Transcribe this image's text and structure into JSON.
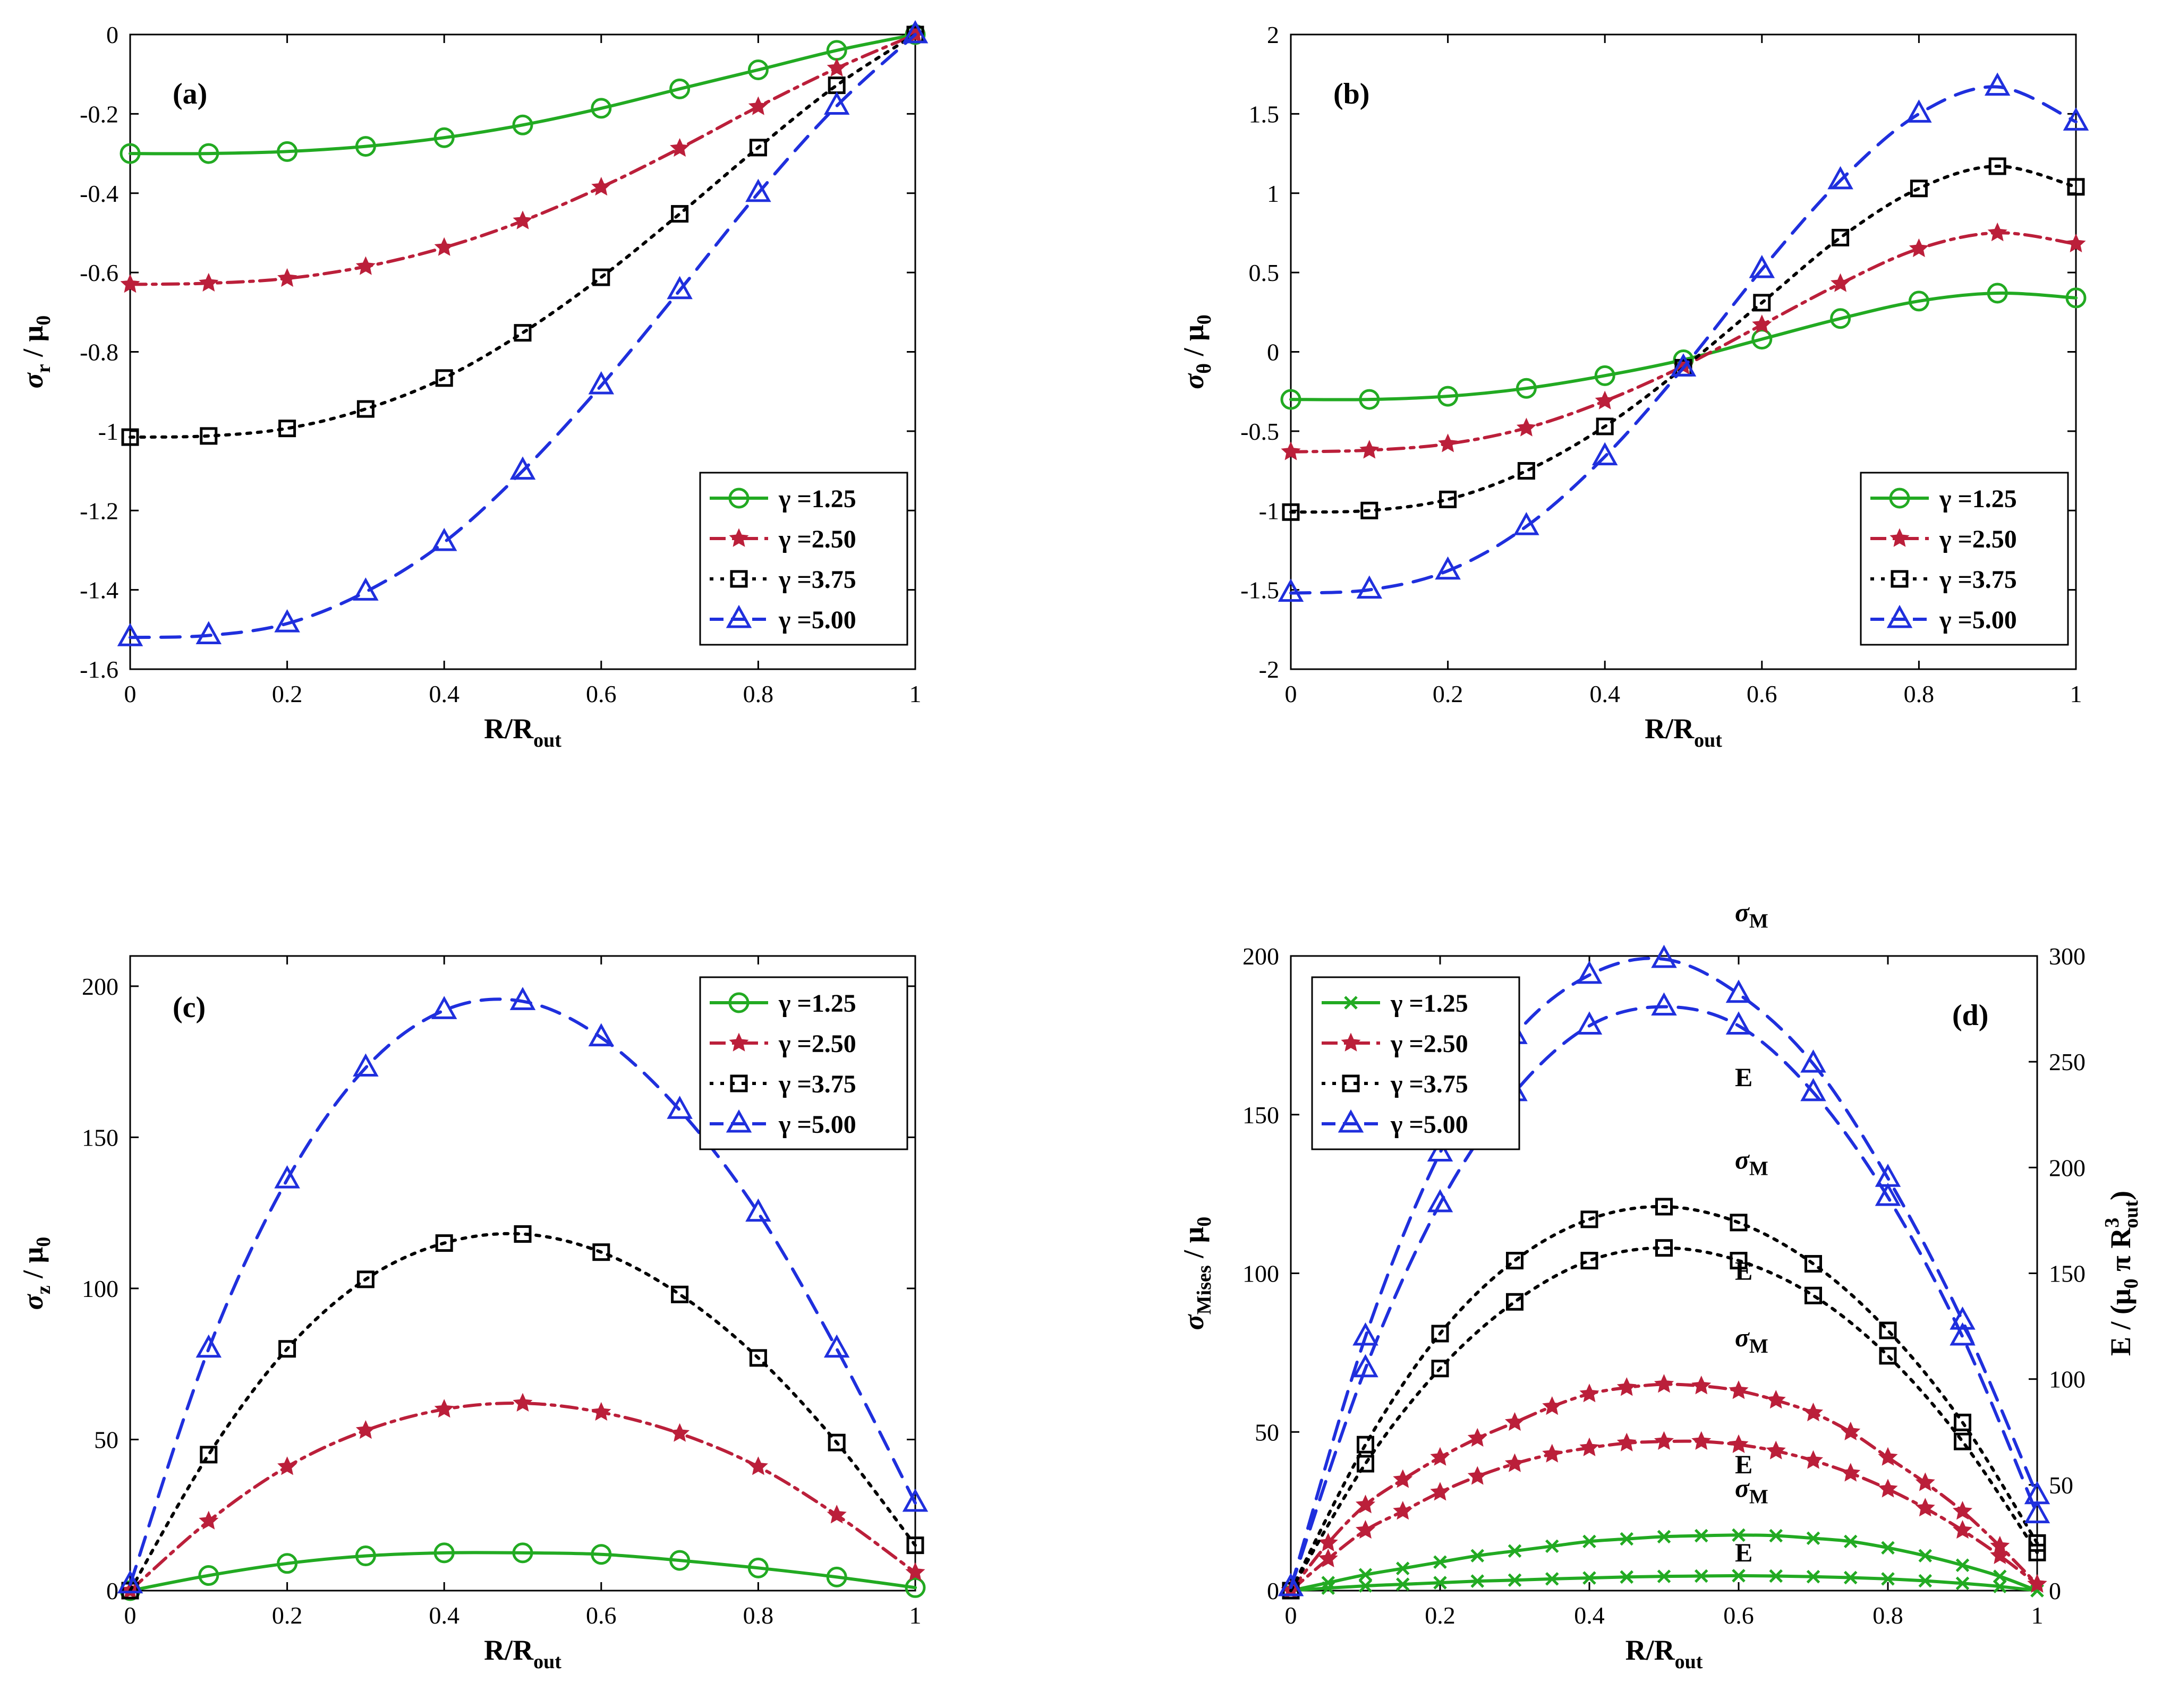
{
  "figure": {
    "panels": [
      {
        "label": "(a)"
      },
      {
        "label": "(b)"
      },
      {
        "label": "(c)"
      },
      {
        "label": "(d)"
      }
    ]
  },
  "chart_data": [
    {
      "type": "line",
      "panel_label": "(a)",
      "xlabel": "R/R",
      "xlabel_sub": "out",
      "ylabel": "σ_r / μ_0",
      "xlim": [
        0,
        1
      ],
      "ylim": [
        -1.6,
        0
      ],
      "xticks": [
        0,
        0.2,
        0.4,
        0.6,
        0.8,
        1
      ],
      "yticks": [
        -1.6,
        -1.4,
        -1.2,
        -1,
        -0.8,
        -0.6,
        -0.4,
        -0.2,
        0
      ],
      "legend_position": "bottom-right",
      "x": [
        0,
        0.1,
        0.2,
        0.3,
        0.4,
        0.5,
        0.6,
        0.7,
        0.8,
        0.9,
        1.0
      ],
      "series": [
        {
          "name": "γ =1.25",
          "color": "#22aa22",
          "dash": "solid",
          "marker": "circle",
          "values": [
            -0.3,
            -0.3,
            -0.295,
            -0.282,
            -0.26,
            -0.228,
            -0.186,
            -0.137,
            -0.089,
            -0.04,
            0
          ]
        },
        {
          "name": "γ =2.50",
          "color": "#bb1f3a",
          "dash": "dashdot",
          "marker": "star",
          "values": [
            -0.63,
            -0.627,
            -0.615,
            -0.585,
            -0.537,
            -0.47,
            -0.385,
            -0.287,
            -0.182,
            -0.085,
            0
          ]
        },
        {
          "name": "γ =3.75",
          "color": "#000000",
          "dash": "dotted",
          "marker": "square",
          "values": [
            -1.015,
            -1.012,
            -0.993,
            -0.944,
            -0.866,
            -0.752,
            -0.612,
            -0.452,
            -0.285,
            -0.128,
            0
          ]
        },
        {
          "name": "γ =5.00",
          "color": "#1f2fdd",
          "dash": "dashed",
          "marker": "triangle",
          "values": [
            -1.52,
            -1.515,
            -1.485,
            -1.405,
            -1.28,
            -1.1,
            -0.885,
            -0.645,
            -0.4,
            -0.18,
            0
          ]
        }
      ]
    },
    {
      "type": "line",
      "panel_label": "(b)",
      "xlabel": "R/R",
      "xlabel_sub": "out",
      "ylabel": "σ_θ / μ_0",
      "xlim": [
        0,
        1
      ],
      "ylim": [
        -2,
        2
      ],
      "xticks": [
        0,
        0.2,
        0.4,
        0.6,
        0.8,
        1
      ],
      "yticks": [
        -2,
        -1.5,
        -1,
        -0.5,
        0,
        0.5,
        1,
        1.5,
        2
      ],
      "legend_position": "bottom-right",
      "x": [
        0,
        0.1,
        0.2,
        0.3,
        0.4,
        0.5,
        0.6,
        0.7,
        0.8,
        0.9,
        1.0
      ],
      "series": [
        {
          "name": "γ =1.25",
          "color": "#22aa22",
          "dash": "solid",
          "marker": "circle",
          "values": [
            -0.3,
            -0.3,
            -0.28,
            -0.23,
            -0.15,
            -0.05,
            0.08,
            0.21,
            0.32,
            0.37,
            0.34
          ]
        },
        {
          "name": "γ =2.50",
          "color": "#bb1f3a",
          "dash": "dashdot",
          "marker": "star",
          "values": [
            -0.63,
            -0.62,
            -0.58,
            -0.48,
            -0.31,
            -0.09,
            0.17,
            0.43,
            0.65,
            0.75,
            0.68
          ]
        },
        {
          "name": "γ =3.75",
          "color": "#000000",
          "dash": "dotted",
          "marker": "square",
          "values": [
            -1.01,
            -1.0,
            -0.93,
            -0.75,
            -0.47,
            -0.1,
            0.31,
            0.72,
            1.03,
            1.17,
            1.04
          ]
        },
        {
          "name": "γ =5.00",
          "color": "#1f2fdd",
          "dash": "dashed",
          "marker": "triangle",
          "values": [
            -1.52,
            -1.5,
            -1.38,
            -1.1,
            -0.66,
            -0.1,
            0.52,
            1.08,
            1.5,
            1.67,
            1.45
          ]
        }
      ]
    },
    {
      "type": "line",
      "panel_label": "(c)",
      "xlabel": "R/R",
      "xlabel_sub": "out",
      "ylabel": "σ_z / μ_0",
      "xlim": [
        0,
        1
      ],
      "ylim": [
        0,
        210
      ],
      "xticks": [
        0,
        0.2,
        0.4,
        0.6,
        0.8,
        1
      ],
      "yticks": [
        0,
        50,
        100,
        150,
        200
      ],
      "legend_position": "top-right",
      "x": [
        0,
        0.1,
        0.2,
        0.3,
        0.4,
        0.5,
        0.6,
        0.7,
        0.8,
        0.9,
        1.0
      ],
      "series": [
        {
          "name": "γ =1.25",
          "color": "#22aa22",
          "dash": "solid",
          "marker": "circle",
          "values": [
            0,
            5,
            9,
            11.5,
            12.5,
            12.5,
            12,
            10,
            7.5,
            4.5,
            1
          ]
        },
        {
          "name": "γ =2.50",
          "color": "#bb1f3a",
          "dash": "dashdot",
          "marker": "star",
          "values": [
            0,
            23,
            41,
            53,
            60,
            62,
            59,
            52,
            41,
            25,
            6
          ]
        },
        {
          "name": "γ =3.75",
          "color": "#000000",
          "dash": "dotted",
          "marker": "square",
          "values": [
            0,
            45,
            80,
            103,
            115,
            118,
            112,
            98,
            77,
            49,
            15
          ]
        },
        {
          "name": "γ =5.00",
          "color": "#1f2fdd",
          "dash": "dashed",
          "marker": "triangle",
          "values": [
            2,
            80,
            136,
            173,
            192,
            195,
            183,
            159,
            125,
            80,
            29
          ]
        }
      ]
    },
    {
      "type": "line",
      "panel_label": "(d)",
      "xlabel": "R/R",
      "xlabel_sub": "out",
      "ylabel": "σ_Mises / μ_0",
      "ylabel_right": "E / (μ_0 π R³_out)",
      "xlim": [
        0,
        1
      ],
      "ylim": [
        0,
        200
      ],
      "ylim_right": [
        0,
        300
      ],
      "xticks": [
        0,
        0.2,
        0.4,
        0.6,
        0.8,
        1
      ],
      "yticks": [
        0,
        50,
        100,
        150,
        200
      ],
      "yticks_right": [
        0,
        50,
        100,
        150,
        200,
        250,
        300
      ],
      "legend_position": "top-left",
      "annotations": [
        "σ_M",
        "E",
        "σ_M",
        "E",
        "σ_M",
        "E",
        "σ_M",
        "E"
      ],
      "series": [
        {
          "name": "γ =1.25",
          "color": "#22aa22",
          "dash": "solid",
          "marker": "x",
          "x": [
            0,
            0.05,
            0.1,
            0.15,
            0.2,
            0.25,
            0.3,
            0.35,
            0.4,
            0.45,
            0.5,
            0.55,
            0.6,
            0.65,
            0.7,
            0.75,
            0.8,
            0.85,
            0.9,
            0.95,
            1.0
          ],
          "sigma_M": [
            0,
            2.5,
            5,
            7,
            9,
            11,
            12.5,
            14,
            15.5,
            16.3,
            17,
            17.3,
            17.5,
            17.3,
            16.5,
            15.5,
            13.5,
            11,
            8,
            4.5,
            0
          ],
          "E": [
            0,
            0.8,
            1.5,
            2,
            2.5,
            3,
            3.3,
            3.7,
            4,
            4.3,
            4.5,
            4.6,
            4.7,
            4.6,
            4.4,
            4.1,
            3.7,
            3.1,
            2.3,
            1.3,
            0
          ]
        },
        {
          "name": "γ =2.50",
          "color": "#bb1f3a",
          "dash": "dashdot",
          "marker": "star",
          "x": [
            0,
            0.05,
            0.1,
            0.15,
            0.2,
            0.25,
            0.3,
            0.35,
            0.4,
            0.45,
            0.5,
            0.55,
            0.6,
            0.65,
            0.7,
            0.75,
            0.8,
            0.85,
            0.9,
            0.95,
            1.0
          ],
          "sigma_M": [
            0,
            15,
            27,
            35,
            42,
            48,
            53,
            58,
            62,
            64,
            65,
            64.5,
            63,
            60,
            56,
            50,
            42,
            34,
            25,
            14,
            2
          ],
          "E": [
            0,
            10,
            19,
            25,
            31,
            36,
            40,
            43,
            45,
            46.5,
            47,
            47,
            46,
            44,
            41,
            37,
            32,
            26,
            19,
            11,
            2
          ]
        },
        {
          "name": "γ =3.75",
          "color": "#000000",
          "dash": "dotted",
          "marker": "square",
          "x": [
            0,
            0.1,
            0.2,
            0.3,
            0.4,
            0.5,
            0.6,
            0.7,
            0.8,
            0.9,
            1.0
          ],
          "sigma_M": [
            0,
            46,
            81,
            104,
            117,
            121,
            116,
            103,
            82,
            53,
            15
          ],
          "E": [
            0,
            40,
            70,
            91,
            104,
            108,
            104,
            93,
            74,
            47,
            12
          ]
        },
        {
          "name": "γ =5.00",
          "color": "#1f2fdd",
          "dash": "dashed",
          "marker": "triangle",
          "x": [
            0,
            0.1,
            0.2,
            0.3,
            0.4,
            0.5,
            0.6,
            0.7,
            0.8,
            0.9,
            1.0
          ],
          "sigma_M": [
            1,
            80,
            138,
            175,
            194,
            199,
            188,
            166,
            130,
            85,
            30
          ],
          "E": [
            1,
            70,
            122,
            157,
            178,
            184,
            178,
            157,
            124,
            80,
            24
          ]
        }
      ]
    }
  ]
}
